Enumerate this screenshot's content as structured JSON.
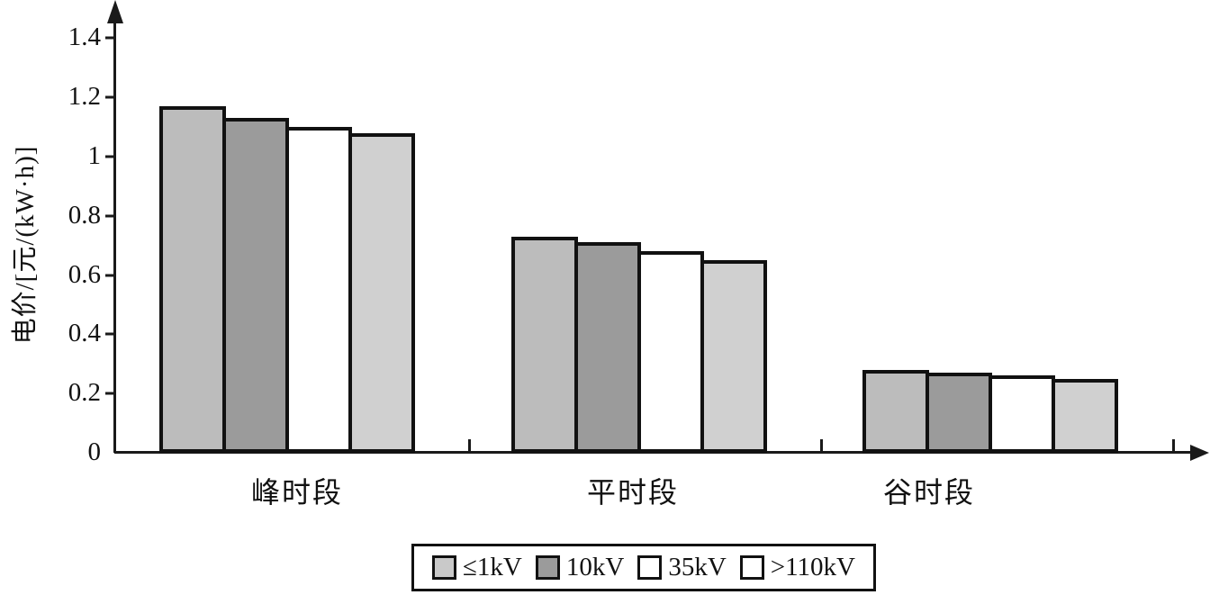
{
  "figure": {
    "background": "#ffffff",
    "axis_color": "#1a1a1a",
    "bar_border_color": "#111111"
  },
  "chart_data": {
    "type": "bar",
    "title": "",
    "xlabel": "",
    "ylabel": "电价/[元/(kW·h)]",
    "categories": [
      "峰时段",
      "平时段",
      "谷时段"
    ],
    "series": [
      {
        "name": "≤1kV",
        "bar_color": "#bcbcbc",
        "legend_color": "#c9c9c9",
        "values": [
          1.17,
          0.73,
          0.28
        ]
      },
      {
        "name": "10kV",
        "bar_color": "#9b9b9b",
        "legend_color": "#9b9b9b",
        "values": [
          1.13,
          0.71,
          0.27
        ]
      },
      {
        "name": "35kV",
        "bar_color": "#ffffff",
        "legend_color": "#ffffff",
        "values": [
          1.1,
          0.68,
          0.26
        ]
      },
      {
        "name": ">110kV",
        "bar_color": "#d0d0d0",
        "legend_color": "#ffffff",
        "values": [
          1.08,
          0.65,
          0.25
        ]
      }
    ],
    "yticks": [
      0,
      0.2,
      0.4,
      0.6,
      0.8,
      1,
      1.2,
      1.4
    ],
    "ylim": [
      0,
      1.5
    ],
    "grid": false,
    "legend_position": "bottom-center"
  }
}
